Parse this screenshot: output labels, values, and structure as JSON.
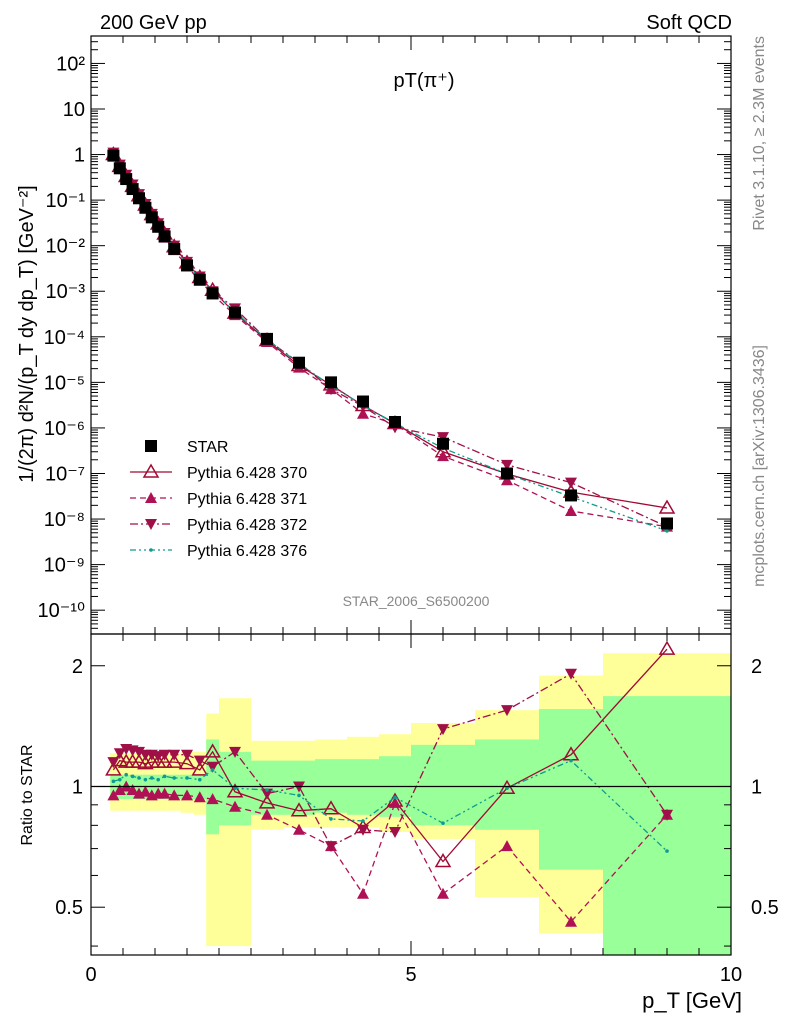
{
  "header": {
    "left": "200 GeV pp",
    "right": "Soft QCD",
    "side_top": "Rivet 3.1.10, ≥ 2.3M events",
    "side_bottom": "mcplots.cern.ch [arXiv:1306.3436]"
  },
  "chart_data": [
    {
      "type": "scatter",
      "panel": "main",
      "title": "pT(π⁺)",
      "ylabel": "1/(2π) d²N/(p_T dy dp_T) [GeV⁻²]",
      "xlabel": "p_T [GeV]",
      "yscale": "log",
      "xlim": [
        0,
        10
      ],
      "ylim": [
        3e-11,
        400
      ],
      "x_ticks": [
        "0",
        "5",
        "10"
      ],
      "y_ticks": [
        "10⁻¹⁰",
        "10⁻⁹",
        "10⁻⁸",
        "10⁻⁷",
        "10⁻⁶",
        "10⁻⁵",
        "10⁻⁴",
        "10⁻³",
        "10⁻²",
        "10⁻¹",
        "1",
        "10",
        "10²"
      ],
      "watermark": "STAR_2006_S6500200",
      "x": [
        0.35,
        0.45,
        0.55,
        0.65,
        0.75,
        0.85,
        0.95,
        1.05,
        1.15,
        1.3,
        1.5,
        1.7,
        1.9,
        2.25,
        2.75,
        3.25,
        3.75,
        4.25,
        4.75,
        5.5,
        6.5,
        7.5,
        9.0
      ],
      "series": [
        {
          "name": "STAR",
          "color": "#000000",
          "marker": "square",
          "values": [
            0.95,
            0.5,
            0.29,
            0.175,
            0.11,
            0.068,
            0.042,
            0.026,
            0.016,
            0.0085,
            0.0037,
            0.0018,
            0.0009,
            0.00034,
            9e-05,
            2.7e-05,
            1e-05,
            3.8e-06,
            1.35e-06,
            4.5e-07,
            1e-07,
            3.3e-08,
            8e-09
          ]
        },
        {
          "name": "Pythia 6.428 370",
          "color": "#a00a34",
          "marker": "open-triangle-up",
          "line": "solid",
          "values": [
            1.0,
            0.55,
            0.33,
            0.2,
            0.125,
            0.078,
            0.048,
            0.03,
            0.018,
            0.0095,
            0.0042,
            0.002,
            0.00105,
            0.00033,
            8.3e-05,
            2.35e-05,
            8.8e-06,
            3.1e-06,
            1.25e-06,
            3e-07,
            9.8e-08,
            3.9e-08,
            1.75e-08
          ]
        },
        {
          "name": "Pythia 6.428 371",
          "color": "#b01155",
          "marker": "triangle-up",
          "line": "dashed",
          "values": [
            0.9,
            0.48,
            0.29,
            0.17,
            0.105,
            0.066,
            0.04,
            0.025,
            0.015,
            0.008,
            0.0035,
            0.0017,
            0.00085,
            0.0003,
            7.7e-05,
            2.1e-05,
            7.1e-06,
            2.05e-06,
            1.22e-06,
            2.4e-07,
            7.1e-08,
            1.5e-08,
            6.8e-09
          ]
        },
        {
          "name": "Pythia 6.428 372",
          "color": "#a01048",
          "marker": "triangle-down",
          "line": "dashdot",
          "values": [
            1.1,
            0.6,
            0.36,
            0.22,
            0.135,
            0.082,
            0.05,
            0.031,
            0.019,
            0.01,
            0.0044,
            0.0021,
            0.001,
            0.00042,
            8.7e-05,
            2.7e-05,
            7.1e-06,
            3e-06,
            1.03e-06,
            6.3e-07,
            1.55e-07,
            6.3e-08,
            6.8e-09
          ]
        },
        {
          "name": "Pythia 6.428 376",
          "color": "#109a90",
          "marker": "dot",
          "line": "dashdotdot",
          "values": [
            0.98,
            0.52,
            0.31,
            0.185,
            0.115,
            0.071,
            0.044,
            0.027,
            0.017,
            0.0089,
            0.0039,
            0.0019,
            0.001,
            0.00035,
            8.8e-05,
            2.6e-05,
            8.5e-06,
            3.1e-06,
            1.27e-06,
            3.6e-07,
            9.8e-08,
            3.1e-08,
            5.5e-09
          ]
        }
      ]
    },
    {
      "type": "scatter",
      "panel": "ratio",
      "ylabel": "Ratio to STAR",
      "xlabel": "p_T [GeV]",
      "yscale": "log",
      "xlim": [
        0,
        10
      ],
      "ylim": [
        0.38,
        2.4
      ],
      "y_ticks": [
        "0.5",
        "1",
        "2"
      ],
      "reference_line": 1,
      "uncertainty_bands": {
        "edges": [
          0.3,
          0.4,
          0.5,
          0.6,
          0.7,
          0.8,
          0.9,
          1.0,
          1.1,
          1.2,
          1.4,
          1.6,
          1.8,
          2.0,
          2.5,
          3.0,
          3.5,
          4.0,
          4.5,
          5.0,
          6.0,
          7.0,
          8.0,
          10.0
        ],
        "inner": [
          [
            0.93,
            1.07
          ],
          [
            0.93,
            1.07
          ],
          [
            0.93,
            1.07
          ],
          [
            0.93,
            1.07
          ],
          [
            0.93,
            1.07
          ],
          [
            0.93,
            1.07
          ],
          [
            0.93,
            1.07
          ],
          [
            0.93,
            1.07
          ],
          [
            0.93,
            1.07
          ],
          [
            0.93,
            1.07
          ],
          [
            0.93,
            1.07
          ],
          [
            0.93,
            1.07
          ],
          [
            0.76,
            1.31
          ],
          [
            0.8,
            1.22
          ],
          [
            0.85,
            1.16
          ],
          [
            0.85,
            1.16
          ],
          [
            0.86,
            1.17
          ],
          [
            0.85,
            1.17
          ],
          [
            0.84,
            1.19
          ],
          [
            0.8,
            1.27
          ],
          [
            0.78,
            1.31
          ],
          [
            0.62,
            1.56
          ],
          [
            0.33,
            1.68
          ]
        ],
        "outer": [
          [
            0.87,
            1.21
          ],
          [
            0.87,
            1.21
          ],
          [
            0.87,
            1.21
          ],
          [
            0.87,
            1.21
          ],
          [
            0.87,
            1.21
          ],
          [
            0.87,
            1.21
          ],
          [
            0.87,
            1.21
          ],
          [
            0.87,
            1.21
          ],
          [
            0.87,
            1.21
          ],
          [
            0.87,
            1.21
          ],
          [
            0.86,
            1.22
          ],
          [
            0.85,
            1.22
          ],
          [
            0.4,
            1.52
          ],
          [
            0.4,
            1.66
          ],
          [
            0.78,
            1.3
          ],
          [
            0.79,
            1.3
          ],
          [
            0.79,
            1.31
          ],
          [
            0.79,
            1.33
          ],
          [
            0.77,
            1.35
          ],
          [
            0.74,
            1.44
          ],
          [
            0.53,
            1.55
          ],
          [
            0.43,
            1.89
          ],
          [
            0.33,
            2.15
          ]
        ],
        "inner_color": "#99ff99",
        "outer_color": "#ffff99"
      },
      "x": [
        0.35,
        0.45,
        0.55,
        0.65,
        0.75,
        0.85,
        0.95,
        1.05,
        1.15,
        1.3,
        1.5,
        1.7,
        1.9,
        2.25,
        2.75,
        3.25,
        3.75,
        4.25,
        4.75,
        5.5,
        6.5,
        7.5,
        9.0
      ],
      "series": [
        {
          "name": "Pythia 6.428 370",
          "values": [
            1.1,
            1.16,
            1.15,
            1.15,
            1.15,
            1.14,
            1.15,
            1.15,
            1.15,
            1.15,
            1.14,
            1.1,
            1.22,
            0.97,
            0.91,
            0.87,
            0.88,
            0.79,
            0.92,
            0.65,
            0.99,
            1.2,
            2.2
          ]
        },
        {
          "name": "Pythia 6.428 371",
          "values": [
            0.95,
            0.98,
            1.0,
            0.98,
            0.96,
            0.97,
            0.95,
            0.96,
            0.96,
            0.95,
            0.95,
            0.94,
            0.93,
            0.89,
            0.85,
            0.78,
            0.71,
            0.54,
            0.91,
            0.54,
            0.71,
            0.46,
            0.85
          ]
        },
        {
          "name": "Pythia 6.428 372",
          "values": [
            1.15,
            1.21,
            1.24,
            1.23,
            1.22,
            1.2,
            1.2,
            1.19,
            1.2,
            1.2,
            1.2,
            1.16,
            1.12,
            1.22,
            0.96,
            1.0,
            0.71,
            0.78,
            0.77,
            1.39,
            1.55,
            1.91,
            0.85
          ]
        },
        {
          "name": "Pythia 6.428 376",
          "values": [
            1.03,
            1.04,
            1.07,
            1.06,
            1.05,
            1.04,
            1.05,
            1.04,
            1.06,
            1.05,
            1.05,
            1.04,
            1.1,
            0.99,
            0.98,
            0.95,
            0.83,
            0.82,
            0.94,
            0.81,
            0.99,
            1.16,
            0.69
          ]
        }
      ]
    }
  ]
}
